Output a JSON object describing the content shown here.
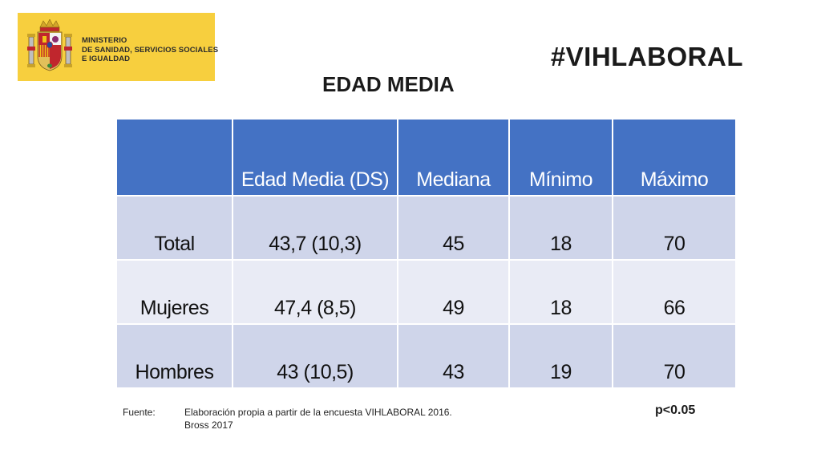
{
  "logo": {
    "ministry_lines": [
      "MINISTERIO",
      "DE SANIDAD, SERVICIOS SOCIALES",
      "E IGUALDAD"
    ],
    "background_color": "#F7CF3E",
    "icon": "spain-coat-of-arms"
  },
  "hashtag": "#VIHLABORAL",
  "title": "EDAD MEDIA",
  "table": {
    "header_color": "#4472C4",
    "columns": [
      "",
      "Edad Media (DS)",
      "Mediana",
      "Mínimo",
      "Máximo"
    ],
    "rows": [
      [
        "Total",
        "43,7 (10,3)",
        "45",
        "18",
        "70"
      ],
      [
        "Mujeres",
        "47,4 (8,5)",
        "49",
        "18",
        "66"
      ],
      [
        "Hombres",
        "43 (10,5)",
        "43",
        "19",
        "70"
      ]
    ]
  },
  "footer": {
    "label": "Fuente:",
    "line1": "Elaboración propia a partir de la encuesta  VIHLABORAL 2016.",
    "line2": "Bross 2017"
  },
  "p_value": "p<0.05"
}
